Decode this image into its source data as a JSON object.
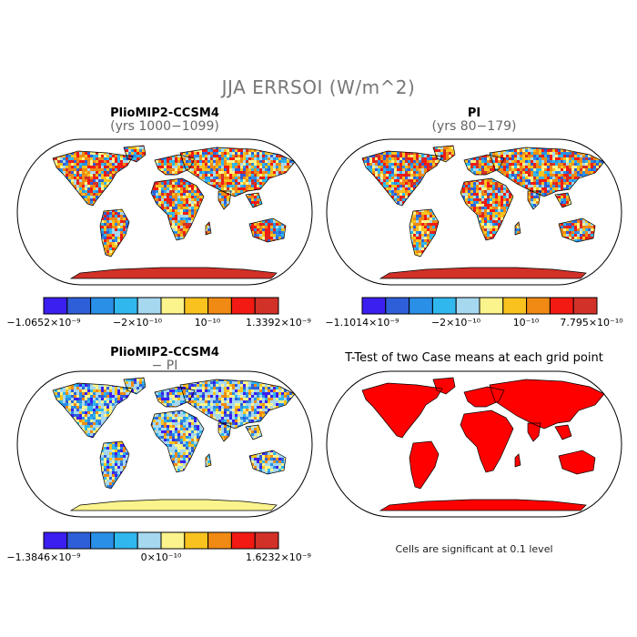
{
  "title": "JJA ERRSOI (W/m^2)",
  "colorbar_colors": [
    "#3b1ef0",
    "#2f5fd8",
    "#2a8fe6",
    "#2fb7ee",
    "#a6d8ef",
    "#fbf38c",
    "#f9c21e",
    "#f08a14",
    "#f21a12",
    "#d23128"
  ],
  "panels": [
    {
      "title": "PlioMIP2-CCSM4",
      "subtitle": "(yrs 1000−1099)",
      "colorbar_labels": [
        "−1.0652×10⁻⁹",
        "−2×10⁻¹⁰",
        "10⁻¹⁰",
        "1.3392×10⁻⁹"
      ]
    },
    {
      "title": "PI",
      "subtitle": "(yrs 80−179)",
      "colorbar_labels": [
        "−1.1014×10⁻⁹",
        "−2×10⁻¹⁰",
        "10⁻¹⁰",
        "7.795×10⁻¹⁰"
      ]
    },
    {
      "title": "PlioMIP2-CCSM4",
      "subtitle": "− PI",
      "colorbar_labels": [
        "−1.3846×10⁻⁹",
        "0×10⁻¹⁰",
        "1.6232×10⁻⁹"
      ]
    },
    {
      "title": "T-Test of two Case means at each grid point",
      "footnote": "Cells are significant at 0.1 level",
      "fill_color": "#ff0000"
    }
  ]
}
